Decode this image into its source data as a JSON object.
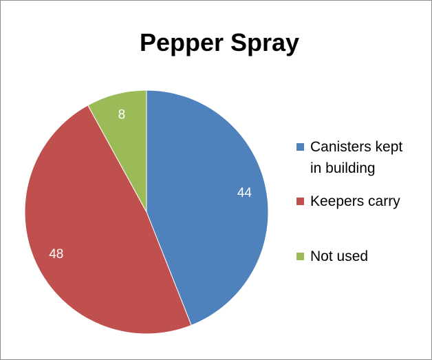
{
  "chart_data": {
    "type": "pie",
    "title": "Pepper Spray",
    "categories": [
      "Canisters kept in building",
      "Keepers carry",
      "Not used"
    ],
    "values": [
      44,
      48,
      8
    ],
    "colors": [
      "#4f81bd",
      "#c0504d",
      "#9bbb59"
    ],
    "legend": "right"
  }
}
